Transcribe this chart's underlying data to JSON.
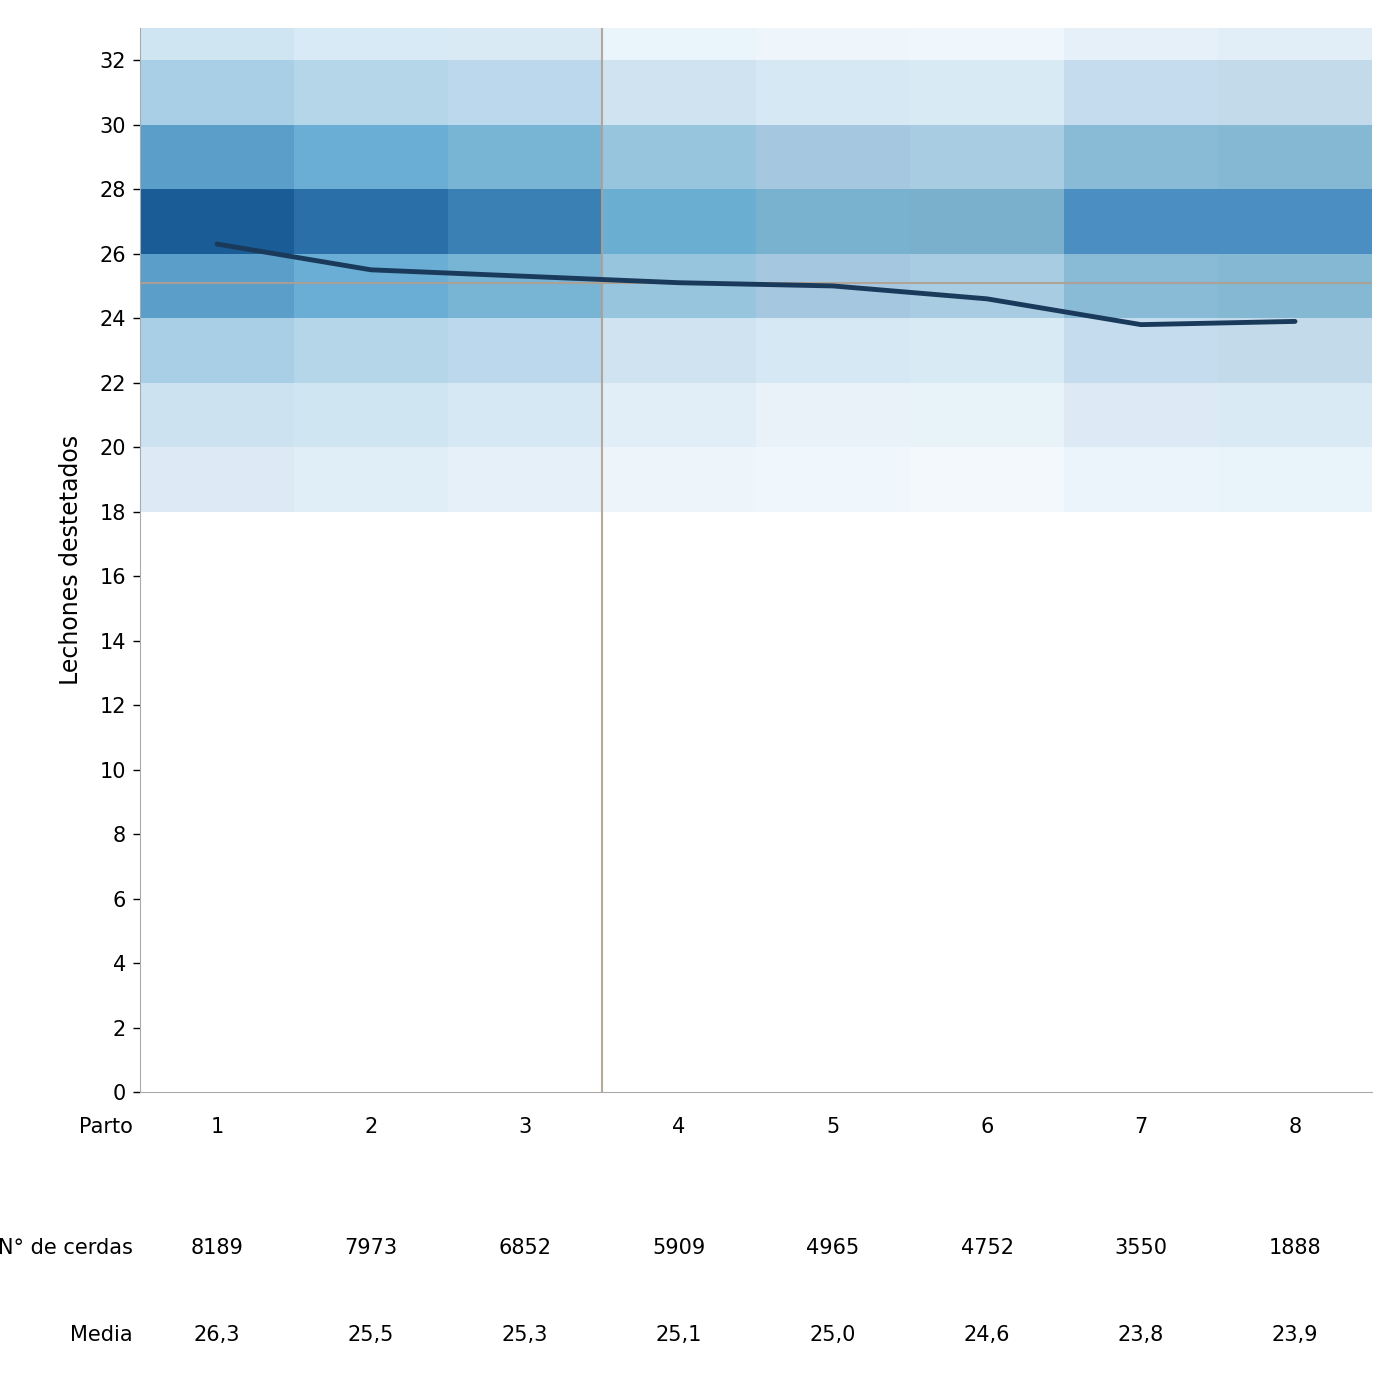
{
  "partos": [
    1,
    2,
    3,
    4,
    5,
    6,
    7,
    8
  ],
  "media_values": [
    26.3,
    25.5,
    25.3,
    25.1,
    25.0,
    24.6,
    23.8,
    23.9
  ],
  "n_cerdas_labels": [
    "8189",
    "7973",
    "6852",
    "5909",
    "4965",
    "4752",
    "3550",
    "1888"
  ],
  "media_labels": [
    "26,3",
    "25,5",
    "25,3",
    "25,1",
    "25,0",
    "24,6",
    "23,8",
    "23,9"
  ],
  "ylabel": "Lechones destetados",
  "ncerdas_label": "N° de cerdas",
  "media_label": "Media",
  "ylim": [
    0,
    33
  ],
  "yticks": [
    0,
    2,
    4,
    6,
    8,
    10,
    12,
    14,
    16,
    18,
    20,
    22,
    24,
    26,
    28,
    30,
    32
  ],
  "reference_line_y": 25.1,
  "vertical_line_x": 3.5,
  "line_color": "#1a3a5c",
  "reference_line_color": "#b0a090",
  "vertical_line_color": "#b0a090",
  "col_band_colors": {
    "1": {
      "32_33": "#d0e5f2",
      "30_32": "#a8cfe5",
      "28_30": "#5b9ec9",
      "26_28": "#1a5c96",
      "24_26": "#5b9ec9",
      "22_24": "#a8cfe5",
      "20_22": "#cce2f0",
      "18_20": "#ddeaf5"
    },
    "2": {
      "32_33": "#d8eaf5",
      "30_32": "#b5d5e9",
      "28_30": "#6aaed6",
      "26_28": "#2a6fa8",
      "24_26": "#6aaed6",
      "22_24": "#b5d5e9",
      "20_22": "#d0e5f2",
      "18_20": "#e0eef7"
    },
    "3": {
      "32_33": "#daeaf5",
      "30_32": "#bcd8ec",
      "28_30": "#78b4d4",
      "26_28": "#3a80b5",
      "24_26": "#78b4d4",
      "22_24": "#bcd8ec",
      "20_22": "#d5e8f3",
      "18_20": "#e5f0f8"
    },
    "4": {
      "32_33": "#eaf4fb",
      "30_32": "#cfe3f0",
      "28_30": "#98c5de",
      "26_28": "#6aafd2",
      "24_26": "#98c5de",
      "22_24": "#cfe3f0",
      "20_22": "#e2eef7",
      "18_20": "#edf5fb"
    },
    "5": {
      "32_33": "#eef6fb",
      "30_32": "#d5e8f3",
      "28_30": "#a5c8e0",
      "26_28": "#78b2ce",
      "24_26": "#a5c8e0",
      "22_24": "#d5e8f3",
      "20_22": "#e8f2f8",
      "18_20": "#f0f7fc"
    },
    "6": {
      "32_33": "#f0f7fc",
      "30_32": "#d8eaf4",
      "28_30": "#a8cce1",
      "26_28": "#7ab0cc",
      "24_26": "#a8cce1",
      "22_24": "#d8eaf4",
      "20_22": "#e8f3f9",
      "18_20": "#f2f8fc"
    },
    "7": {
      "32_33": "#e5f0f8",
      "30_32": "#c5dcee",
      "28_30": "#8abbd6",
      "26_28": "#4a8ec2",
      "24_26": "#8abbd6",
      "22_24": "#c5dcee",
      "20_22": "#ddeaf5",
      "18_20": "#ebf4fb"
    },
    "8": {
      "32_33": "#e2eef7",
      "30_32": "#c2daea",
      "28_30": "#85b8d3",
      "26_28": "#4a8ec2",
      "24_26": "#85b8d3",
      "22_24": "#c2daea",
      "20_22": "#daeaf5",
      "18_20": "#e8f3fa"
    }
  }
}
